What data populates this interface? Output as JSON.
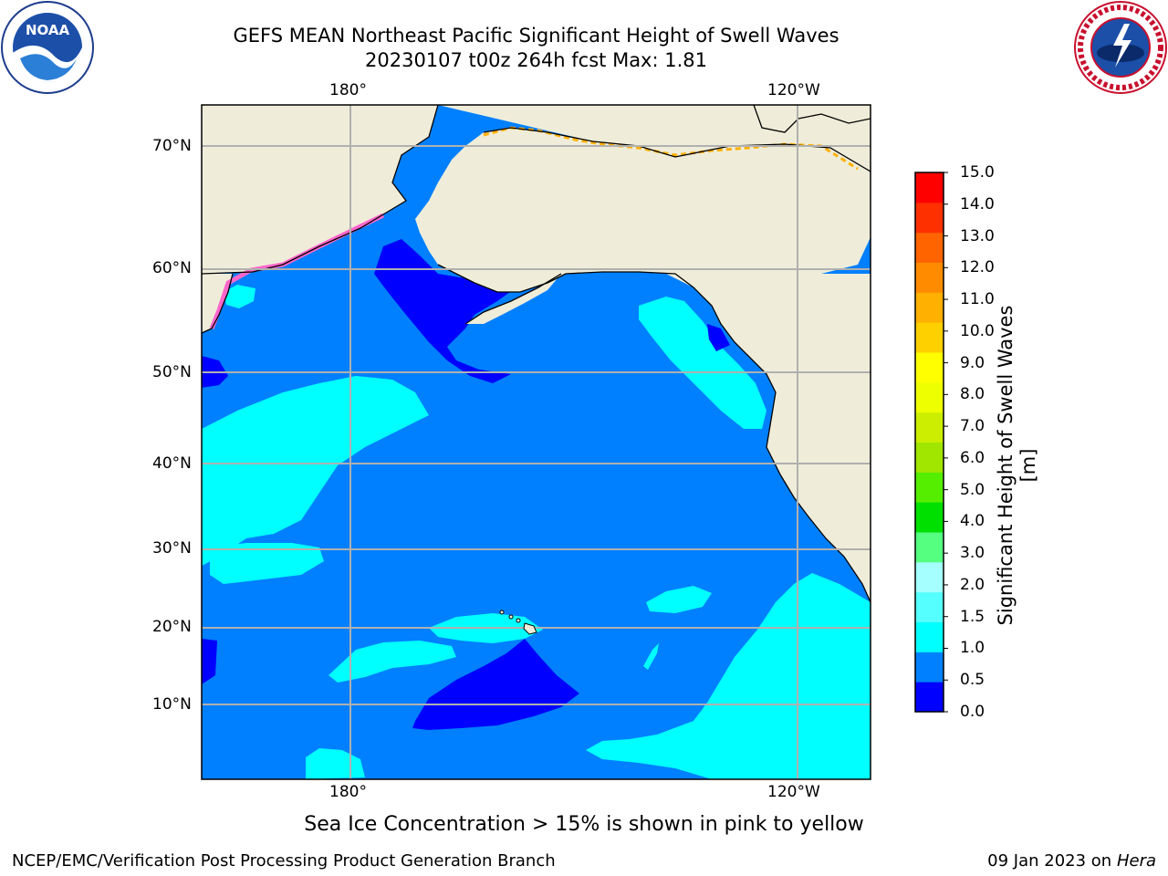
{
  "title": {
    "line1": "GEFS MEAN Northeast Pacific Significant Height of Swell Waves",
    "line2": "20230107 t00z 264h fcst   Max: 1.81"
  },
  "logos": {
    "left": {
      "name": "noaa-logo-icon",
      "text": "NOAA"
    },
    "right": {
      "name": "nws-logo-icon",
      "text": "NATIONAL WEATHER SERVICE"
    }
  },
  "map": {
    "lon_ticks_top": [
      "180°",
      "120°W"
    ],
    "lon_ticks_bottom": [
      "180°",
      "120°W"
    ],
    "lat_ticks": [
      "70°N",
      "60°N",
      "50°N",
      "40°N",
      "30°N",
      "20°N",
      "10°N"
    ],
    "colors": {
      "land": "#efedd9",
      "ocean_base": "#0080ff",
      "calm": "#0000ff",
      "moderate": "#00ffff",
      "ice_pink": "#ff66cc",
      "ice_orange": "#ffb000",
      "grid": "#b0b0b0"
    }
  },
  "colorbar": {
    "label": "Significant Height of Swell Waves [m]",
    "ticks": [
      "15.0",
      "14.0",
      "13.0",
      "12.0",
      "11.0",
      "10.0",
      "9.0",
      "8.0",
      "7.0",
      "6.0",
      "5.0",
      "4.0",
      "3.0",
      "2.0",
      "1.5",
      "1.0",
      "0.5",
      "0.0"
    ],
    "colors": [
      "#0000ff",
      "#0080ff",
      "#00ffff",
      "#55ffff",
      "#a5ffff",
      "#55ff80",
      "#00e000",
      "#55ee00",
      "#a0e600",
      "#ccee00",
      "#eeff00",
      "#ffff00",
      "#ffd000",
      "#ffb000",
      "#ff8c00",
      "#ff6400",
      "#ff3000",
      "#ff0000"
    ]
  },
  "note": "Sea Ice Concentration > 15% is shown in pink to yellow",
  "footer": {
    "left": "NCEP/EMC/Verification Post Processing Product Generation Branch",
    "right_prefix": "09 Jan 2023 on ",
    "right_host": "Hera"
  }
}
